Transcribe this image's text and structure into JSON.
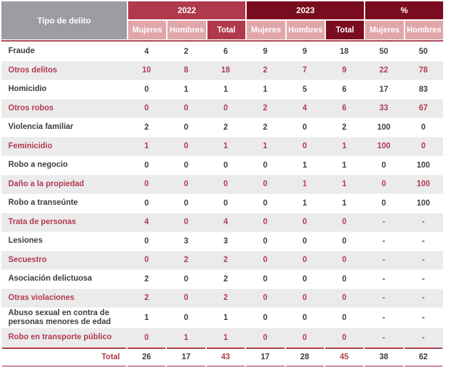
{
  "table": {
    "corner_header": "Tipo de delito",
    "groups": [
      {
        "label": "2022",
        "columns": [
          "Mujeres",
          "Hombres",
          "Total"
        ]
      },
      {
        "label": "2023",
        "columns": [
          "Mujeres",
          "Hombres",
          "Total"
        ]
      },
      {
        "label": "%",
        "columns": [
          "Mujeres",
          "Hombres"
        ]
      }
    ],
    "rows": [
      {
        "label": "Fraude",
        "values": [
          "4",
          "2",
          "6",
          "9",
          "9",
          "18",
          "50",
          "50"
        ]
      },
      {
        "label": "Otros delitos",
        "values": [
          "10",
          "8",
          "18",
          "2",
          "7",
          "9",
          "22",
          "78"
        ]
      },
      {
        "label": "Homicidio",
        "values": [
          "0",
          "1",
          "1",
          "1",
          "5",
          "6",
          "17",
          "83"
        ]
      },
      {
        "label": "Otros robos",
        "values": [
          "0",
          "0",
          "0",
          "2",
          "4",
          "6",
          "33",
          "67"
        ]
      },
      {
        "label": "Violencia familiar",
        "values": [
          "2",
          "0",
          "2",
          "2",
          "0",
          "2",
          "100",
          "0"
        ]
      },
      {
        "label": "Feminicidio",
        "values": [
          "1",
          "0",
          "1",
          "1",
          "0",
          "1",
          "100",
          "0"
        ]
      },
      {
        "label": "Robo a negocio",
        "values": [
          "0",
          "0",
          "0",
          "0",
          "1",
          "1",
          "0",
          "100"
        ]
      },
      {
        "label": "Daño a la propiedad",
        "values": [
          "0",
          "0",
          "0",
          "0",
          "1",
          "1",
          "0",
          "100"
        ]
      },
      {
        "label": "Robo a transeúnte",
        "values": [
          "0",
          "0",
          "0",
          "0",
          "1",
          "1",
          "0",
          "100"
        ]
      },
      {
        "label": "Trata de personas",
        "values": [
          "4",
          "0",
          "4",
          "0",
          "0",
          "0",
          "-",
          "-"
        ]
      },
      {
        "label": "Lesiones",
        "values": [
          "0",
          "3",
          "3",
          "0",
          "0",
          "0",
          "-",
          "-"
        ]
      },
      {
        "label": "Secuestro",
        "values": [
          "0",
          "2",
          "2",
          "0",
          "0",
          "0",
          "-",
          "-"
        ]
      },
      {
        "label": "Asociación delictuosa",
        "values": [
          "2",
          "0",
          "2",
          "0",
          "0",
          "0",
          "-",
          "-"
        ]
      },
      {
        "label": "Otras violaciones",
        "values": [
          "2",
          "0",
          "2",
          "0",
          "0",
          "0",
          "-",
          "-"
        ]
      },
      {
        "label": "Abuso sexual en contra de personas menores de edad",
        "values": [
          "1",
          "0",
          "1",
          "0",
          "0",
          "0",
          "-",
          "-"
        ]
      },
      {
        "label": "Robo en transporte público",
        "values": [
          "0",
          "1",
          "1",
          "0",
          "0",
          "0",
          "-",
          "-"
        ]
      }
    ],
    "total": {
      "label": "Total",
      "values": [
        "26",
        "17",
        "43",
        "17",
        "28",
        "45",
        "38",
        "62"
      ]
    }
  },
  "colors": {
    "crimson": "#B03A4C",
    "dark_maroon": "#7A0C1F",
    "pink_subheader": "#E0A6A9",
    "gray_header": "#9B9DA0",
    "alt_row_bg": "#EBEBEB",
    "row_accent_text": "#B23A52",
    "dark_text": "#3C3C44"
  }
}
